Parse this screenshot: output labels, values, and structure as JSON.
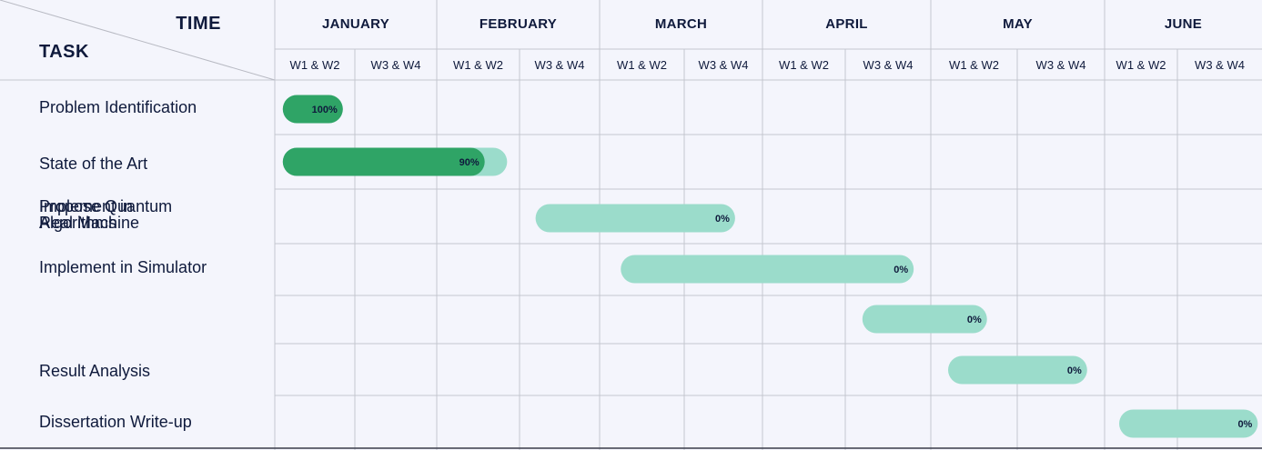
{
  "header": {
    "corner_time": "TIME",
    "corner_task": "TASK"
  },
  "chart_data": {
    "type": "gantt",
    "months": [
      "JANUARY",
      "FEBRUARY",
      "MARCH",
      "APRIL",
      "MAY",
      "JUNE"
    ],
    "weeks": [
      "W1 & W2",
      "W3 & W4",
      "W1 & W2",
      "W3 & W4",
      "W1 & W2",
      "W3 & W4",
      "W1 & W2",
      "W3 & W4",
      "W1 & W2",
      "W3 & W4",
      "W1 & W2",
      "W3 & W4"
    ],
    "tasks": [
      {
        "name": "Problem Identification",
        "start": 0.1,
        "end": 0.85,
        "progress": 100,
        "progress_label": "100%"
      },
      {
        "name": "State of the Art",
        "start": 0.1,
        "end": 2.85,
        "progress": 90,
        "progress_label": "90%"
      },
      {
        "name": "Propose Quantum Algorithms",
        "start": 3.2,
        "end": 5.65,
        "progress": 0,
        "progress_label": "0%"
      },
      {
        "name": "Implement in Simulator",
        "start": 4.25,
        "end": 7.8,
        "progress": 0,
        "progress_label": "0%"
      },
      {
        "name": "Implement in Real Machine",
        "start": 7.2,
        "end": 8.65,
        "progress": 0,
        "progress_label": "0%"
      },
      {
        "name": "Result Analysis",
        "start": 8.2,
        "end": 9.8,
        "progress": 0,
        "progress_label": "0%"
      },
      {
        "name": "Dissertation Write-up",
        "start": 10.2,
        "end": 11.95,
        "progress": 0,
        "progress_label": "0%"
      }
    ],
    "colors": {
      "background": "#f4f5fc",
      "planned_bar": "#9bdccb",
      "progress_bar": "#2fa466",
      "grid": "#c4c6cf",
      "text": "#0f1a3c"
    }
  }
}
